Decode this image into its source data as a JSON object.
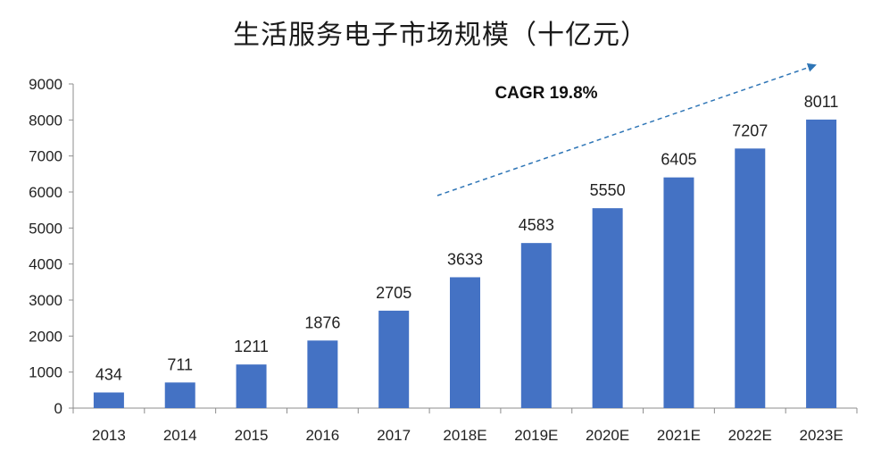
{
  "chart_data": {
    "type": "bar",
    "title": "生活服务电子市场规模（十亿元）",
    "categories": [
      "2013",
      "2014",
      "2015",
      "2016",
      "2017",
      "2018E",
      "2019E",
      "2020E",
      "2021E",
      "2022E",
      "2023E"
    ],
    "values": [
      434,
      711,
      1211,
      1876,
      2705,
      3633,
      4583,
      5550,
      6405,
      7207,
      8011
    ],
    "ylim": [
      0,
      9000
    ],
    "yticks": [
      "0",
      "1000",
      "2000",
      "3000",
      "4000",
      "5000",
      "6000",
      "7000",
      "8000",
      "9000"
    ],
    "xlabel": "",
    "ylabel": "",
    "grid": false,
    "legend": "none",
    "annotation": "CAGR 19.8%",
    "bar_color": "#4472C4",
    "trend_arrow_color": "#2E75B6"
  }
}
